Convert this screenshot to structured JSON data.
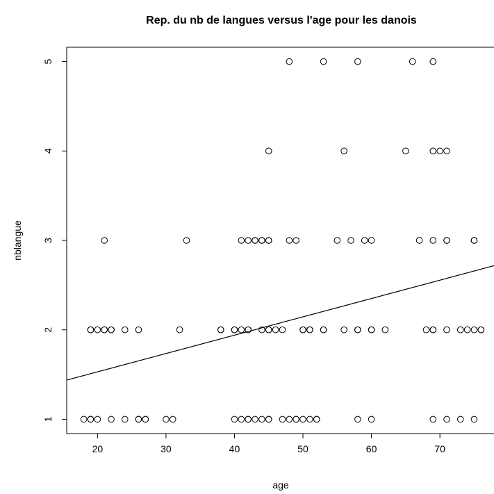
{
  "chart_data": {
    "type": "scatter",
    "title": "Rep. du nb de langues versus l'age pour les danois",
    "xlabel": "age",
    "ylabel": "nblangue",
    "xlim": [
      15.5,
      78
    ],
    "ylim": [
      0.84,
      5.16
    ],
    "xticks": [
      "20",
      "30",
      "40",
      "50",
      "60",
      "70"
    ],
    "yticks": [
      "1",
      "2",
      "3",
      "4",
      "5"
    ],
    "points": [
      [
        18,
        1
      ],
      [
        19,
        1
      ],
      [
        19,
        1
      ],
      [
        20,
        1
      ],
      [
        22,
        1
      ],
      [
        24,
        1
      ],
      [
        26,
        1
      ],
      [
        26,
        1
      ],
      [
        27,
        1
      ],
      [
        27,
        1
      ],
      [
        30,
        1
      ],
      [
        31,
        1
      ],
      [
        40,
        1
      ],
      [
        41,
        1
      ],
      [
        42,
        1
      ],
      [
        42,
        1
      ],
      [
        43,
        1
      ],
      [
        44,
        1
      ],
      [
        45,
        1
      ],
      [
        45,
        1
      ],
      [
        47,
        1
      ],
      [
        48,
        1
      ],
      [
        49,
        1
      ],
      [
        49,
        1
      ],
      [
        50,
        1
      ],
      [
        51,
        1
      ],
      [
        52,
        1
      ],
      [
        52,
        1
      ],
      [
        58,
        1
      ],
      [
        60,
        1
      ],
      [
        69,
        1
      ],
      [
        71,
        1
      ],
      [
        73,
        1
      ],
      [
        75,
        1
      ],
      [
        19,
        2
      ],
      [
        19,
        2
      ],
      [
        20,
        2
      ],
      [
        21,
        2
      ],
      [
        21,
        2
      ],
      [
        22,
        2
      ],
      [
        22,
        2
      ],
      [
        24,
        2
      ],
      [
        26,
        2
      ],
      [
        32,
        2
      ],
      [
        38,
        2
      ],
      [
        38,
        2
      ],
      [
        40,
        2
      ],
      [
        40,
        2
      ],
      [
        41,
        2
      ],
      [
        42,
        2
      ],
      [
        42,
        2
      ],
      [
        44,
        2
      ],
      [
        45,
        2
      ],
      [
        45,
        2
      ],
      [
        46,
        2
      ],
      [
        47,
        2
      ],
      [
        50,
        2
      ],
      [
        50,
        2
      ],
      [
        51,
        2
      ],
      [
        51,
        2
      ],
      [
        53,
        2
      ],
      [
        53,
        2
      ],
      [
        56,
        2
      ],
      [
        58,
        2
      ],
      [
        58,
        2
      ],
      [
        60,
        2
      ],
      [
        60,
        2
      ],
      [
        62,
        2
      ],
      [
        68,
        2
      ],
      [
        69,
        2
      ],
      [
        69,
        2
      ],
      [
        71,
        2
      ],
      [
        73,
        2
      ],
      [
        74,
        2
      ],
      [
        75,
        2
      ],
      [
        76,
        2
      ],
      [
        76,
        2
      ],
      [
        21,
        3
      ],
      [
        33,
        3
      ],
      [
        41,
        3
      ],
      [
        42,
        3
      ],
      [
        43,
        3
      ],
      [
        43,
        3
      ],
      [
        44,
        3
      ],
      [
        44,
        3
      ],
      [
        45,
        3
      ],
      [
        45,
        3
      ],
      [
        48,
        3
      ],
      [
        49,
        3
      ],
      [
        55,
        3
      ],
      [
        57,
        3
      ],
      [
        59,
        3
      ],
      [
        60,
        3
      ],
      [
        67,
        3
      ],
      [
        69,
        3
      ],
      [
        71,
        3
      ],
      [
        71,
        3
      ],
      [
        75,
        3
      ],
      [
        75,
        3
      ],
      [
        45,
        4
      ],
      [
        56,
        4
      ],
      [
        65,
        4
      ],
      [
        69,
        4
      ],
      [
        70,
        4
      ],
      [
        71,
        4
      ],
      [
        48,
        5
      ],
      [
        53,
        5
      ],
      [
        58,
        5
      ],
      [
        66,
        5
      ],
      [
        69,
        5
      ]
    ],
    "regression": {
      "intercept": 1.12,
      "slope": 0.0205
    },
    "grid": false,
    "legend": "none"
  }
}
